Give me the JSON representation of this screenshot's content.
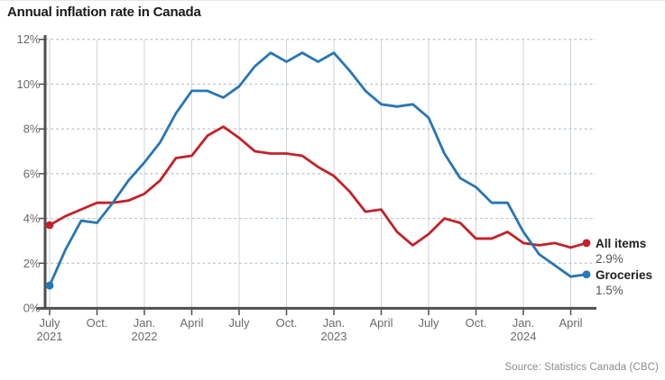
{
  "title": "Annual inflation rate in Canada",
  "source": "Source: Statistics Canada (CBC)",
  "legend": [
    {
      "label": "All items",
      "value": "2.9%"
    },
    {
      "label": "Groceries",
      "value": "1.5%"
    }
  ],
  "colors": {
    "all_items": "#c32128",
    "groceries": "#2776b4",
    "axis": "#4f4f4f",
    "grid_dashed": "#b7c2cb",
    "grid_vertical": "#cdd5db",
    "tick_label": "#6a6a6a",
    "title_text": "#1a1a1a",
    "legend_label": "#1f1f1f",
    "legend_value": "#565656",
    "source_text": "#8c8c8c",
    "background": "#ffffff"
  },
  "chart_data": {
    "type": "line",
    "title": "Annual inflation rate in Canada",
    "xlabel": "",
    "ylabel": "",
    "ylim": [
      0,
      12
    ],
    "grid": "horizontal-dashed-plus-vertical-solid",
    "legend_position": "right-of-line-ends",
    "x": [
      "Jul 2021",
      "Aug 2021",
      "Sep 2021",
      "Oct 2021",
      "Nov 2021",
      "Dec 2021",
      "Jan 2022",
      "Feb 2022",
      "Mar 2022",
      "Apr 2022",
      "May 2022",
      "Jun 2022",
      "Jul 2022",
      "Aug 2022",
      "Sep 2022",
      "Oct 2022",
      "Nov 2022",
      "Dec 2022",
      "Jan 2023",
      "Feb 2023",
      "Mar 2023",
      "Apr 2023",
      "May 2023",
      "Jun 2023",
      "Jul 2023",
      "Aug 2023",
      "Sep 2023",
      "Oct 2023",
      "Nov 2023",
      "Dec 2023",
      "Jan 2024",
      "Feb 2024",
      "Mar 2024",
      "Apr 2024",
      "May 2024"
    ],
    "series": [
      {
        "name": "All items",
        "color": "#c32128",
        "end_label": "2.9%",
        "values": [
          3.7,
          4.1,
          4.4,
          4.7,
          4.7,
          4.8,
          5.1,
          5.7,
          6.7,
          6.8,
          7.7,
          8.1,
          7.6,
          7.0,
          6.9,
          6.9,
          6.8,
          6.3,
          5.9,
          5.2,
          4.3,
          4.4,
          3.4,
          2.8,
          3.3,
          4.0,
          3.8,
          3.1,
          3.1,
          3.4,
          2.9,
          2.8,
          2.9,
          2.7,
          2.9
        ]
      },
      {
        "name": "Groceries",
        "color": "#2776b4",
        "end_label": "1.5%",
        "values": [
          1.0,
          2.6,
          3.9,
          3.8,
          4.7,
          5.7,
          6.5,
          7.4,
          8.7,
          9.7,
          9.7,
          9.4,
          9.9,
          10.8,
          11.4,
          11.0,
          11.4,
          11.0,
          11.4,
          10.6,
          9.7,
          9.1,
          9.0,
          9.1,
          8.5,
          6.9,
          5.8,
          5.4,
          4.7,
          4.7,
          3.4,
          2.4,
          1.9,
          1.4,
          1.5
        ]
      }
    ],
    "y_ticks": [
      {
        "v": 0,
        "label": "0%"
      },
      {
        "v": 2,
        "label": "2%"
      },
      {
        "v": 4,
        "label": "4%"
      },
      {
        "v": 6,
        "label": "6%"
      },
      {
        "v": 8,
        "label": "8%"
      },
      {
        "v": 10,
        "label": "10%"
      },
      {
        "v": 12,
        "label": "12%"
      }
    ],
    "x_ticks": [
      {
        "index": 0,
        "line1": "July",
        "line2": "2021"
      },
      {
        "index": 3,
        "line1": "Oct.",
        "line2": ""
      },
      {
        "index": 6,
        "line1": "Jan.",
        "line2": "2022"
      },
      {
        "index": 9,
        "line1": "April",
        "line2": ""
      },
      {
        "index": 12,
        "line1": "July",
        "line2": ""
      },
      {
        "index": 15,
        "line1": "Oct.",
        "line2": ""
      },
      {
        "index": 18,
        "line1": "Jan.",
        "line2": "2023"
      },
      {
        "index": 21,
        "line1": "April",
        "line2": ""
      },
      {
        "index": 24,
        "line1": "July",
        "line2": ""
      },
      {
        "index": 27,
        "line1": "Oct.",
        "line2": ""
      },
      {
        "index": 30,
        "line1": "Jan.",
        "line2": "2024"
      },
      {
        "index": 33,
        "line1": "April",
        "line2": ""
      }
    ]
  }
}
